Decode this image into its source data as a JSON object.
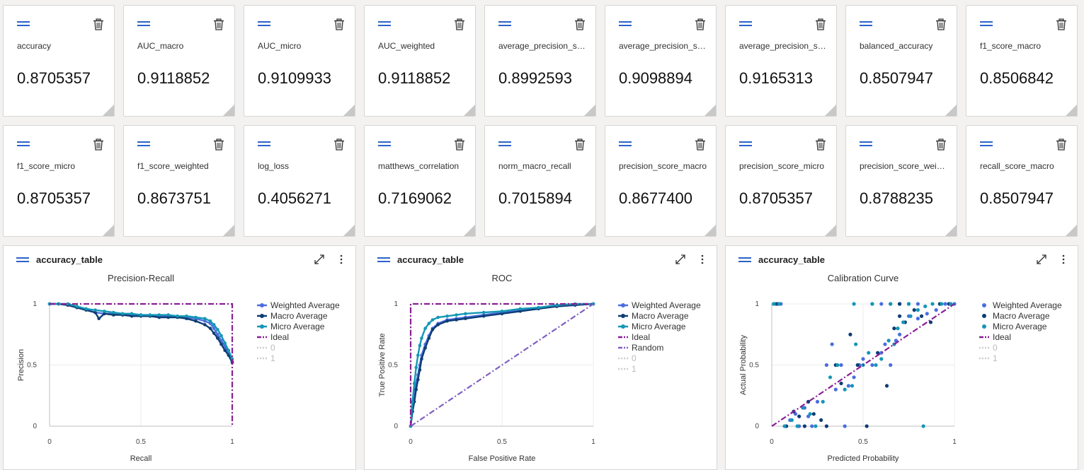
{
  "metric_tiles": [
    {
      "name": "accuracy",
      "value": "0.8705357"
    },
    {
      "name": "AUC_macro",
      "value": "0.9118852"
    },
    {
      "name": "AUC_micro",
      "value": "0.9109933"
    },
    {
      "name": "AUC_weighted",
      "value": "0.9118852"
    },
    {
      "name": "average_precision_sco...",
      "value": "0.8992593"
    },
    {
      "name": "average_precision_sco...",
      "value": "0.9098894"
    },
    {
      "name": "average_precision_sco...",
      "value": "0.9165313"
    },
    {
      "name": "balanced_accuracy",
      "value": "0.8507947"
    },
    {
      "name": "f1_score_macro",
      "value": "0.8506842"
    },
    {
      "name": "f1_score_micro",
      "value": "0.8705357"
    },
    {
      "name": "f1_score_weighted",
      "value": "0.8673751"
    },
    {
      "name": "log_loss",
      "value": "0.4056271"
    },
    {
      "name": "matthews_correlation",
      "value": "0.7169062"
    },
    {
      "name": "norm_macro_recall",
      "value": "0.7015894"
    },
    {
      "name": "precision_score_macro",
      "value": "0.8677400"
    },
    {
      "name": "precision_score_micro",
      "value": "0.8705357"
    },
    {
      "name": "precision_score_weigh...",
      "value": "0.8788235"
    },
    {
      "name": "recall_score_macro",
      "value": "0.8507947"
    }
  ],
  "colors": {
    "weighted": "#4a6ee0",
    "macro": "#0d3d73",
    "micro": "#1497b5",
    "ideal": "#8a1e96",
    "random": "#8060c0",
    "hidden": "#cccccc",
    "accent": "#2b63c9"
  },
  "chart_data": [
    {
      "card_title": "accuracy_table",
      "type": "line",
      "title": "Precision-Recall",
      "xlabel": "Recall",
      "ylabel": "Precision",
      "xlim": [
        0,
        1
      ],
      "ylim": [
        0,
        1
      ],
      "xticks": [
        "0",
        "0.5",
        "1"
      ],
      "yticks": [
        "0",
        "0.5",
        "1"
      ],
      "legend": [
        "Weighted Average",
        "Macro Average",
        "Micro Average",
        "Ideal",
        "0",
        "1"
      ],
      "series": [
        {
          "name": "Weighted Average",
          "x": [
            0,
            0.05,
            0.1,
            0.15,
            0.2,
            0.25,
            0.3,
            0.35,
            0.4,
            0.45,
            0.5,
            0.55,
            0.6,
            0.65,
            0.7,
            0.75,
            0.8,
            0.85,
            0.88,
            0.9,
            0.92,
            0.94,
            0.96,
            0.98,
            1.0
          ],
          "y": [
            1,
            1,
            0.99,
            0.97,
            0.95,
            0.93,
            0.92,
            0.92,
            0.91,
            0.91,
            0.91,
            0.9,
            0.9,
            0.9,
            0.9,
            0.89,
            0.88,
            0.86,
            0.84,
            0.8,
            0.75,
            0.7,
            0.65,
            0.6,
            0.53
          ]
        },
        {
          "name": "Macro Average",
          "x": [
            0,
            0.05,
            0.1,
            0.15,
            0.2,
            0.25,
            0.27,
            0.3,
            0.35,
            0.4,
            0.45,
            0.5,
            0.55,
            0.6,
            0.65,
            0.7,
            0.75,
            0.8,
            0.85,
            0.88,
            0.9,
            0.92,
            0.94,
            0.96,
            0.98,
            1.0
          ],
          "y": [
            1,
            1,
            0.99,
            0.97,
            0.95,
            0.93,
            0.88,
            0.92,
            0.91,
            0.91,
            0.9,
            0.9,
            0.9,
            0.89,
            0.89,
            0.89,
            0.88,
            0.86,
            0.83,
            0.8,
            0.76,
            0.72,
            0.67,
            0.62,
            0.58,
            0.52
          ]
        },
        {
          "name": "Micro Average",
          "x": [
            0,
            0.05,
            0.1,
            0.15,
            0.2,
            0.25,
            0.3,
            0.35,
            0.4,
            0.45,
            0.5,
            0.55,
            0.6,
            0.65,
            0.7,
            0.75,
            0.8,
            0.85,
            0.88,
            0.9,
            0.92,
            0.94,
            0.96,
            0.98,
            1.0
          ],
          "y": [
            1,
            1,
            1,
            0.98,
            0.96,
            0.95,
            0.94,
            0.93,
            0.92,
            0.92,
            0.91,
            0.91,
            0.91,
            0.91,
            0.9,
            0.9,
            0.89,
            0.88,
            0.86,
            0.83,
            0.79,
            0.74,
            0.68,
            0.62,
            0.55
          ]
        },
        {
          "name": "Ideal",
          "x": [
            0,
            1,
            1
          ],
          "y": [
            1,
            1,
            0
          ]
        }
      ]
    },
    {
      "card_title": "accuracy_table",
      "type": "line",
      "title": "ROC",
      "xlabel": "False Positive Rate",
      "ylabel": "True Positive Rate",
      "xlim": [
        0,
        1
      ],
      "ylim": [
        0,
        1
      ],
      "xticks": [
        "0",
        "0.5",
        "1"
      ],
      "yticks": [
        "0",
        "0.5",
        "1"
      ],
      "legend": [
        "Weighted Average",
        "Macro Average",
        "Micro Average",
        "Ideal",
        "Random",
        "0",
        "1"
      ],
      "series": [
        {
          "name": "Weighted Average",
          "x": [
            0,
            0.01,
            0.02,
            0.03,
            0.04,
            0.05,
            0.06,
            0.08,
            0.1,
            0.12,
            0.15,
            0.2,
            0.25,
            0.3,
            0.4,
            0.5,
            0.6,
            0.7,
            0.8,
            0.9,
            1.0
          ],
          "y": [
            0,
            0.15,
            0.25,
            0.35,
            0.42,
            0.5,
            0.58,
            0.67,
            0.74,
            0.8,
            0.84,
            0.87,
            0.88,
            0.89,
            0.91,
            0.93,
            0.95,
            0.97,
            0.98,
            0.99,
            1.0
          ]
        },
        {
          "name": "Macro Average",
          "x": [
            0,
            0.01,
            0.02,
            0.03,
            0.04,
            0.05,
            0.06,
            0.08,
            0.1,
            0.12,
            0.15,
            0.2,
            0.25,
            0.3,
            0.4,
            0.5,
            0.6,
            0.7,
            0.8,
            0.9,
            1.0
          ],
          "y": [
            0,
            0.12,
            0.2,
            0.3,
            0.38,
            0.46,
            0.55,
            0.64,
            0.72,
            0.79,
            0.83,
            0.86,
            0.87,
            0.88,
            0.9,
            0.92,
            0.94,
            0.96,
            0.98,
            0.99,
            1.0
          ]
        },
        {
          "name": "Micro Average",
          "x": [
            0,
            0.01,
            0.02,
            0.03,
            0.04,
            0.05,
            0.06,
            0.08,
            0.1,
            0.12,
            0.15,
            0.2,
            0.25,
            0.3,
            0.4,
            0.5,
            0.6,
            0.7,
            0.8,
            0.9,
            1.0
          ],
          "y": [
            0,
            0.2,
            0.35,
            0.48,
            0.58,
            0.66,
            0.72,
            0.8,
            0.84,
            0.87,
            0.89,
            0.9,
            0.91,
            0.92,
            0.93,
            0.94,
            0.96,
            0.97,
            0.99,
            1.0,
            1.0
          ]
        },
        {
          "name": "Ideal",
          "x": [
            0,
            0,
            1
          ],
          "y": [
            0,
            1,
            1
          ]
        },
        {
          "name": "Random",
          "x": [
            0,
            1
          ],
          "y": [
            0,
            1
          ]
        }
      ]
    },
    {
      "card_title": "accuracy_table",
      "type": "scatter",
      "title": "Calibration Curve",
      "xlabel": "Predicted Probability",
      "ylabel": "Actual Probability",
      "xlim": [
        0,
        1
      ],
      "ylim": [
        0,
        1
      ],
      "xticks": [
        "0",
        "0.5",
        "1"
      ],
      "yticks": [
        "0",
        "0.5",
        "1"
      ],
      "legend": [
        "Weighted Average",
        "Macro Average",
        "Micro Average",
        "Ideal",
        "0",
        "1"
      ],
      "series": [
        {
          "name": "Weighted Average",
          "x": [
            0.02,
            0.05,
            0.1,
            0.13,
            0.15,
            0.18,
            0.2,
            0.22,
            0.25,
            0.3,
            0.33,
            0.35,
            0.38,
            0.4,
            0.42,
            0.45,
            0.48,
            0.5,
            0.55,
            0.6,
            0.62,
            0.65,
            0.68,
            0.7,
            0.72,
            0.75,
            0.8,
            0.85,
            0.9,
            0.95,
            1.0,
            0.55,
            0.6,
            0.7,
            0.8
          ],
          "y": [
            1,
            1,
            0.05,
            0.1,
            0.0,
            0.15,
            0.08,
            0.0,
            0.2,
            0.5,
            0.67,
            0.3,
            0.5,
            0.0,
            0.33,
            0.4,
            0.5,
            0.55,
            0.5,
            0.6,
            0.67,
            0.5,
            0.7,
            0.75,
            0.85,
            0.9,
            0.88,
            0.92,
            0.95,
            1.0,
            1.0,
            1,
            1,
            1,
            1
          ]
        },
        {
          "name": "Macro Average",
          "x": [
            0.03,
            0.08,
            0.12,
            0.15,
            0.18,
            0.2,
            0.23,
            0.27,
            0.3,
            0.35,
            0.38,
            0.43,
            0.47,
            0.52,
            0.58,
            0.63,
            0.67,
            0.7,
            0.73,
            0.78,
            0.82,
            0.87,
            0.92,
            0.97,
            0.65,
            0.7,
            0.75
          ],
          "y": [
            1,
            0.0,
            0.12,
            0.08,
            0.0,
            0.2,
            0.1,
            0.05,
            0.0,
            0.5,
            0.35,
            0.75,
            0.5,
            0.0,
            0.6,
            0.33,
            0.8,
            0.9,
            0.85,
            0.95,
            0.9,
            0.85,
            1.0,
            1.0,
            1,
            1,
            1
          ]
        },
        {
          "name": "Micro Average",
          "x": [
            0.01,
            0.04,
            0.07,
            0.11,
            0.14,
            0.17,
            0.21,
            0.24,
            0.28,
            0.32,
            0.36,
            0.4,
            0.44,
            0.46,
            0.5,
            0.53,
            0.57,
            0.6,
            0.64,
            0.67,
            0.69,
            0.72,
            0.76,
            0.8,
            0.84,
            0.88,
            0.93,
            0.98,
            0.83,
            0.75,
            0.65,
            0.55,
            0.45
          ],
          "y": [
            1,
            1,
            0.0,
            0.05,
            0.0,
            0.15,
            0.1,
            0.0,
            0.2,
            0.4,
            0.5,
            0.3,
            0.33,
            0.67,
            0.5,
            0.6,
            0.5,
            0.55,
            0.7,
            0.67,
            0.8,
            0.85,
            0.9,
            0.95,
            0.98,
            1.0,
            1.0,
            1.0,
            0.0,
            1,
            1,
            1,
            1
          ]
        },
        {
          "name": "Ideal",
          "x": [
            0,
            1
          ],
          "y": [
            0,
            1
          ]
        }
      ]
    }
  ]
}
